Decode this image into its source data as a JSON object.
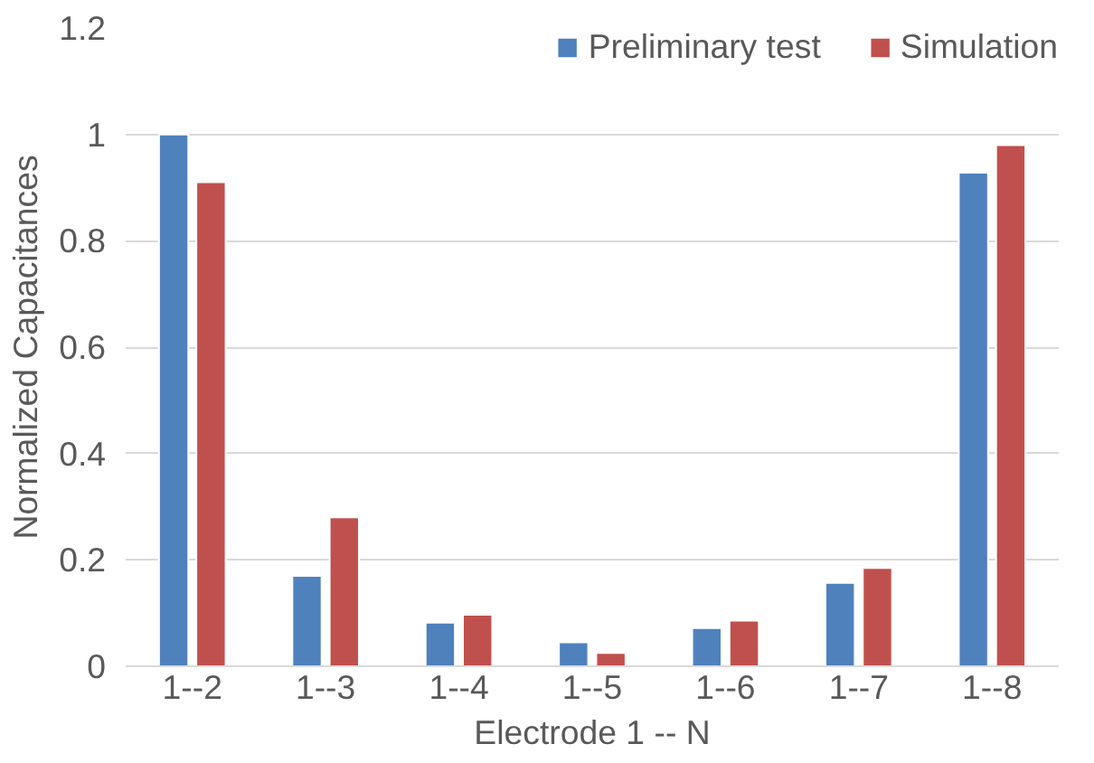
{
  "chart_data": {
    "type": "bar",
    "xlabel": "Electrode 1 -- N",
    "ylabel": "Normalized Capacitances",
    "categories": [
      "1--2",
      "1--3",
      "1--4",
      "1--5",
      "1--6",
      "1--7",
      "1--8"
    ],
    "series": [
      {
        "name": "Preliminary test",
        "color": "#4f81bd",
        "values": [
          1.0,
          0.17,
          0.082,
          0.045,
          0.072,
          0.157,
          0.928
        ]
      },
      {
        "name": "Simulation",
        "color": "#c0504d",
        "values": [
          0.91,
          0.28,
          0.097,
          0.025,
          0.086,
          0.185,
          0.98
        ]
      }
    ],
    "ylim": [
      0,
      1.2
    ],
    "yticks": [
      0,
      {
        "value": 0.2,
        "label": "0.2"
      },
      {
        "value": 0.4,
        "label": "0.4"
      },
      {
        "value": 0.6,
        "label": "0.6"
      },
      {
        "value": 0.8,
        "label": "0.8"
      },
      1,
      {
        "value": 1.2,
        "label": "1.2"
      }
    ],
    "grid": "y",
    "legend": "top right"
  }
}
